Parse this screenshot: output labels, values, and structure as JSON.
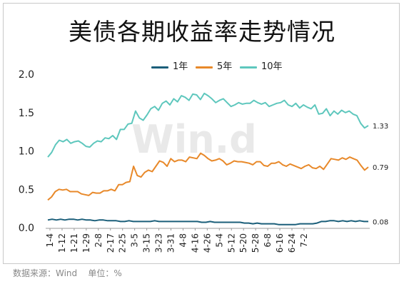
{
  "title": "美债各期收益率走势情况",
  "source": "数据来源：Wind    单位：%",
  "watermark": "Win.d",
  "colors": {
    "1年": "#1b5f7a",
    "5年": "#e8892a",
    "10年": "#5ec7bd",
    "axis": "#999999"
  },
  "chart_data": {
    "type": "line",
    "title": "美债各期收益率走势情况",
    "xlabel": "",
    "ylabel": "",
    "ylim": [
      0,
      2.0
    ],
    "yticks": [
      "0.0",
      "0.5",
      "1.0",
      "1.5",
      "2.0"
    ],
    "grid": false,
    "legend": "top",
    "xtick_labels": [
      "1-4",
      "1-12",
      "1-21",
      "1-29",
      "2-8",
      "2-17",
      "2-25",
      "3-5",
      "3-15",
      "3-23",
      "3-31",
      "4-8",
      "4-16",
      "4-26",
      "5-4",
      "5-12",
      "5-20",
      "5-28",
      "6-8",
      "6-16",
      "6-24",
      "7-2"
    ],
    "series": [
      {
        "name": "1年",
        "end_label": "0.08",
        "values": [
          0.1,
          0.11,
          0.1,
          0.11,
          0.1,
          0.11,
          0.11,
          0.1,
          0.11,
          0.1,
          0.1,
          0.09,
          0.1,
          0.1,
          0.09,
          0.09,
          0.09,
          0.08,
          0.08,
          0.09,
          0.08,
          0.08,
          0.08,
          0.08,
          0.08,
          0.09,
          0.08,
          0.08,
          0.08,
          0.08,
          0.08,
          0.08,
          0.08,
          0.08,
          0.08,
          0.08,
          0.07,
          0.07,
          0.08,
          0.07,
          0.07,
          0.07,
          0.07,
          0.07,
          0.07,
          0.07,
          0.06,
          0.06,
          0.05,
          0.06,
          0.05,
          0.05,
          0.05,
          0.05,
          0.04,
          0.04,
          0.04,
          0.04,
          0.04,
          0.05,
          0.05,
          0.05,
          0.05,
          0.06,
          0.08,
          0.08,
          0.09,
          0.09,
          0.08,
          0.09,
          0.08,
          0.09,
          0.08,
          0.09,
          0.08,
          0.08
        ]
      },
      {
        "name": "5年",
        "end_label": "0.79",
        "values": [
          0.36,
          0.4,
          0.47,
          0.5,
          0.49,
          0.5,
          0.47,
          0.47,
          0.47,
          0.44,
          0.43,
          0.42,
          0.46,
          0.45,
          0.45,
          0.48,
          0.48,
          0.5,
          0.48,
          0.56,
          0.56,
          0.59,
          0.6,
          0.8,
          0.68,
          0.66,
          0.72,
          0.75,
          0.73,
          0.8,
          0.87,
          0.85,
          0.8,
          0.9,
          0.86,
          0.88,
          0.88,
          0.86,
          0.92,
          0.91,
          0.9,
          0.97,
          0.94,
          0.9,
          0.87,
          0.88,
          0.9,
          0.87,
          0.82,
          0.84,
          0.87,
          0.86,
          0.86,
          0.85,
          0.84,
          0.82,
          0.86,
          0.86,
          0.81,
          0.8,
          0.84,
          0.84,
          0.86,
          0.82,
          0.8,
          0.83,
          0.81,
          0.79,
          0.77,
          0.8,
          0.82,
          0.78,
          0.77,
          0.8,
          0.76,
          0.83,
          0.9,
          0.89,
          0.88,
          0.91,
          0.89,
          0.92,
          0.9,
          0.88,
          0.81,
          0.75,
          0.79
        ]
      },
      {
        "name": "10年",
        "end_label": "1.33",
        "values": [
          0.92,
          0.98,
          1.08,
          1.14,
          1.12,
          1.15,
          1.1,
          1.12,
          1.13,
          1.1,
          1.06,
          1.05,
          1.1,
          1.13,
          1.12,
          1.17,
          1.16,
          1.2,
          1.15,
          1.28,
          1.28,
          1.35,
          1.36,
          1.52,
          1.43,
          1.4,
          1.47,
          1.55,
          1.58,
          1.53,
          1.62,
          1.65,
          1.6,
          1.68,
          1.64,
          1.72,
          1.7,
          1.66,
          1.74,
          1.73,
          1.67,
          1.75,
          1.72,
          1.68,
          1.63,
          1.66,
          1.68,
          1.63,
          1.58,
          1.6,
          1.63,
          1.61,
          1.62,
          1.62,
          1.66,
          1.63,
          1.61,
          1.63,
          1.58,
          1.6,
          1.62,
          1.63,
          1.66,
          1.6,
          1.58,
          1.62,
          1.56,
          1.6,
          1.57,
          1.55,
          1.6,
          1.48,
          1.49,
          1.55,
          1.46,
          1.52,
          1.48,
          1.53,
          1.5,
          1.52,
          1.48,
          1.46,
          1.36,
          1.3,
          1.33
        ]
      }
    ]
  }
}
